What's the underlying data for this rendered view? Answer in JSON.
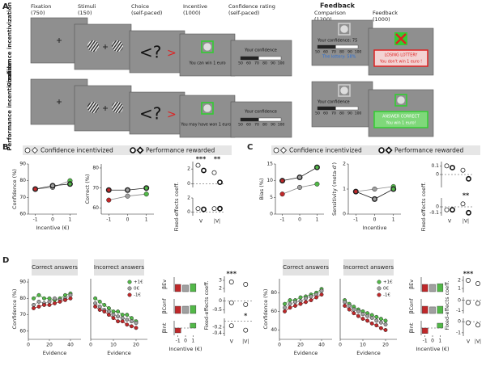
{
  "task": {
    "label": "A",
    "section": "Feedback",
    "rows": [
      "Confidence incentivization",
      "Performance incentivization"
    ],
    "steps": [
      {
        "name": "Fixation",
        "duration": "(750)"
      },
      {
        "name": "Stimuli",
        "duration": "(150)"
      },
      {
        "name": "Choice",
        "duration": "(self-paced)"
      },
      {
        "name": "Incentive",
        "duration": "(1000)"
      },
      {
        "name": "Confidence rating",
        "duration": "(self-paced)"
      },
      {
        "name": "Comparison",
        "duration": "(1200)"
      },
      {
        "name": "Feedback",
        "duration": "(1000)"
      }
    ],
    "choice_symbols": [
      "<?",
      ">"
    ],
    "scale": [
      50,
      60,
      70,
      80,
      90,
      100
    ],
    "screens": [
      {
        "incentive": "You can win 1 euro",
        "confidence": "Your confidence",
        "comparison": [
          "Your confidence: 75",
          "The lottery: 58%"
        ],
        "feedback": [
          "LOSING LOTTERY",
          "You don't win 1 euro !"
        ]
      },
      {
        "incentive": "You may have won 1 euro !",
        "confidence": "Your confidence",
        "comparison": [
          "Your confidence"
        ],
        "feedback": [
          "ANSWER CORRECT",
          "You win 1 euro!"
        ]
      }
    ]
  },
  "panels": [
    {
      "label": "B",
      "charts": [
        {
          "type": "line",
          "ylabel": "Confidence (%)",
          "xlabel": "Incentive (€)",
          "xlim": [
            -1.4,
            1.4
          ],
          "ylim": [
            60,
            90
          ],
          "xticks": [
            -1,
            0,
            1
          ],
          "yticks": [
            60,
            70,
            80,
            90
          ],
          "x": [
            -1,
            0,
            1
          ],
          "point_colors": [
            "#c0282a",
            "#a0a0a0",
            "#52b848"
          ],
          "series": [
            {
              "name": "Confidence incentivized",
              "color": "#888",
              "outline": "thin",
              "values": [
                75,
                76,
                80
              ]
            },
            {
              "name": "Performance rewarded",
              "color": "#222",
              "outline": "thick",
              "values": [
                75,
                77,
                78
              ]
            }
          ]
        },
        {
          "type": "line",
          "ylabel": "Correct (%)",
          "xlim": [
            -1.4,
            1.4
          ],
          "ylim": [
            57,
            82
          ],
          "xticks": [
            -1,
            0,
            1
          ],
          "yticks": [
            60,
            70,
            80
          ],
          "x": [
            -1,
            0,
            1
          ],
          "point_colors": [
            "#c0282a",
            "#a0a0a0",
            "#52b848"
          ],
          "series": [
            {
              "color": "#888",
              "outline": "thin",
              "values": [
                64,
                66,
                67
              ]
            },
            {
              "color": "#222",
              "outline": "thick",
              "values": [
                69,
                69,
                70
              ]
            }
          ]
        },
        {
          "type": "coef",
          "ylim": [
            -0.5,
            3
          ],
          "yticks": [
            0,
            2
          ],
          "annotations": [
            "***",
            "**"
          ],
          "series": [
            {
              "outline": "thin",
              "values": [
                2.5,
                1.5
              ]
            },
            {
              "outline": "thick",
              "values": [
                1.8,
                0.2
              ]
            }
          ]
        },
        {
          "type": "coef",
          "ylabel": "Fixed-effects coeff.",
          "ylim": [
            -0.5,
            2
          ],
          "yticks": [
            0,
            2
          ],
          "categories": [
            "V",
            "|V|"
          ],
          "series": [
            {
              "outline": "thin",
              "values": [
                0.5,
                0.5
              ]
            },
            {
              "outline": "thick",
              "values": [
                0.4,
                0.5
              ]
            }
          ]
        }
      ]
    },
    {
      "label": "C",
      "charts": [
        {
          "type": "line",
          "ylabel": "Bias (%)",
          "xlim": [
            -1.4,
            1.4
          ],
          "ylim": [
            0,
            15
          ],
          "xticks": [
            -1,
            0,
            1
          ],
          "yticks": [
            0,
            5,
            10,
            15
          ],
          "x": [
            -1,
            0,
            1
          ],
          "point_colors": [
            "#c0282a",
            "#a0a0a0",
            "#52b848"
          ],
          "series": [
            {
              "name": "Confidence incentivized",
              "color": "#888",
              "outline": "thin",
              "values": [
                6,
                8,
                9
              ]
            },
            {
              "name": "Performance rewarded",
              "color": "#222",
              "outline": "thick",
              "values": [
                10,
                11,
                14
              ]
            }
          ]
        },
        {
          "type": "line",
          "ylabel": "Sensitivity (meta-d')",
          "xlabel": "Incentive",
          "xlim": [
            -1.4,
            1.4
          ],
          "ylim": [
            0,
            2
          ],
          "xticks": [
            -1,
            0,
            1
          ],
          "yticks": [
            0,
            1,
            2
          ],
          "x": [
            -1,
            0,
            1
          ],
          "point_colors": [
            "#c0282a",
            "#a0a0a0",
            "#52b848"
          ],
          "series": [
            {
              "color": "#888",
              "outline": "thin",
              "values": [
                0.9,
                1.0,
                1.1
              ]
            },
            {
              "color": "#222",
              "outline": "thick",
              "values": [
                0.9,
                0.6,
                1.0
              ]
            }
          ]
        },
        {
          "type": "coef",
          "ylim": [
            -0.15,
            0.15
          ],
          "yticks": [
            0,
            0.1
          ],
          "series": [
            {
              "outline": "thin",
              "values": [
                0.1,
                0.05
              ]
            },
            {
              "outline": "thick",
              "values": [
                0.08,
                -0.05
              ]
            }
          ]
        },
        {
          "type": "coef",
          "ylabel": "Fixed-effects coeff.",
          "ylim": [
            -0.15,
            0.15
          ],
          "yticks": [
            -0.1,
            0
          ],
          "categories": [
            "V",
            "|V|"
          ],
          "annotations": [
            "",
            "**"
          ],
          "series": [
            {
              "outline": "thin",
              "values": [
                -0.05,
                0.05
              ]
            },
            {
              "outline": "thick",
              "values": [
                -0.05,
                -0.1
              ]
            }
          ]
        }
      ]
    },
    {
      "label": "D",
      "charts": [
        {
          "type": "line",
          "title": "Correct answers",
          "ylabel": "Confidence (%)",
          "xlabel": "Evidence",
          "xlim": [
            0,
            50
          ],
          "ylim": [
            55,
            92
          ],
          "xticks": [
            0,
            20,
            40
          ],
          "yticks": [
            60,
            70,
            80,
            90
          ],
          "x": [
            5,
            10,
            15,
            20,
            25,
            30,
            35,
            40
          ],
          "series": [
            {
              "color": "#52b848",
              "outline": "thin",
              "values": [
                80,
                82,
                80,
                80,
                79,
                80,
                82,
                83
              ]
            },
            {
              "color": "#a0a0a0",
              "outline": "thin",
              "values": [
                76,
                78,
                77,
                78,
                80,
                79,
                80,
                82
              ]
            },
            {
              "color": "#c0282a",
              "outline": "thin",
              "values": [
                74,
                75,
                76,
                76,
                77,
                78,
                79,
                80
              ]
            }
          ]
        },
        {
          "type": "line",
          "title": "Incorrect answers",
          "xlabel": "Evidence",
          "legend": true,
          "xlim": [
            0,
            25
          ],
          "ylim": [
            55,
            92
          ],
          "xticks": [
            0,
            10,
            20
          ],
          "x": [
            2,
            4,
            6,
            8,
            10,
            12,
            14,
            16,
            18,
            20
          ],
          "series": [
            {
              "name": "+1€",
              "color": "#52b848",
              "outline": "thin",
              "values": [
                80,
                78,
                76,
                74,
                72,
                72,
                70,
                70,
                68,
                66
              ]
            },
            {
              "name": "0€",
              "color": "#a0a0a0",
              "outline": "thin",
              "values": [
                77,
                75,
                73,
                72,
                70,
                69,
                68,
                67,
                66,
                65
              ]
            },
            {
              "name": "-1€",
              "color": "#c0282a",
              "outline": "thin",
              "values": [
                75,
                73,
                72,
                70,
                68,
                66,
                66,
                64,
                63,
                62
              ]
            }
          ]
        },
        {
          "type": "bar",
          "ylabel": "βEv",
          "ylim": [
            0,
            1
          ],
          "point_colors": [
            "#c0282a",
            "#a0a0a0",
            "#52b848"
          ],
          "values": [
            0.5,
            0.45,
            0.55
          ]
        },
        {
          "type": "bar",
          "ylabel": "βConf",
          "ylim": [
            0,
            1
          ],
          "point_colors": [
            "#c0282a",
            "#a0a0a0",
            "#52b848"
          ],
          "values": [
            0.5,
            0.5,
            0.55
          ]
        },
        {
          "type": "bar",
          "ylabel": "βInt",
          "xlabel": "Incentive (€)",
          "ylim": [
            -0.6,
            0.6
          ],
          "xticks": [
            -1,
            0,
            1
          ],
          "point_colors": [
            "#c0282a",
            "#a0a0a0",
            "#52b848"
          ],
          "values": [
            -0.4,
            0,
            0.4
          ]
        },
        {
          "type": "coef",
          "ylim": [
            1.5,
            3.5
          ],
          "yticks": [
            2,
            3
          ],
          "annotations": [
            "***"
          ],
          "series": [
            {
              "outline": "thin",
              "values": [
                2.8,
                2.5
              ]
            }
          ]
        },
        {
          "type": "coef",
          "ylabel": "Fixed-effects coeff.",
          "ylim": [
            -0.7,
            0.2
          ],
          "yticks": [
            -0.5,
            0
          ],
          "series": [
            {
              "outline": "thin",
              "values": [
                -0.1,
                -0.2
              ]
            }
          ]
        },
        {
          "type": "coef",
          "ylim": [
            -0.5,
            0.1
          ],
          "yticks": [
            -0.4,
            -0.2
          ],
          "categories": [
            "V",
            "|V|"
          ],
          "annotations": [
            "",
            "*"
          ],
          "series": [
            {
              "outline": "thin",
              "values": [
                -0.15,
                -0.3
              ]
            }
          ]
        },
        {
          "type": "line",
          "title": "Correct answers",
          "ylabel": "Confidence (%)",
          "xlabel": "Evidence",
          "xlim": [
            0,
            50
          ],
          "ylim": [
            30,
            95
          ],
          "xticks": [
            0,
            20,
            40
          ],
          "yticks": [
            40,
            60,
            80
          ],
          "x": [
            5,
            10,
            15,
            20,
            25,
            30,
            35,
            40
          ],
          "series": [
            {
              "color": "#52b848",
              "outline": "thin",
              "values": [
                68,
                72,
                72,
                75,
                76,
                78,
                80,
                84
              ]
            },
            {
              "color": "#a0a0a0",
              "outline": "thin",
              "values": [
                64,
                68,
                70,
                71,
                74,
                76,
                78,
                82
              ]
            },
            {
              "color": "#c0282a",
              "outline": "thin",
              "values": [
                60,
                64,
                66,
                68,
                70,
                72,
                75,
                78
              ]
            }
          ]
        },
        {
          "type": "line",
          "title": "Incorrect answers",
          "xlabel": "Evidence",
          "legend": true,
          "xlim": [
            0,
            25
          ],
          "ylim": [
            30,
            95
          ],
          "xticks": [
            0,
            10,
            20
          ],
          "x": [
            2,
            4,
            6,
            8,
            10,
            12,
            14,
            16,
            18,
            20
          ],
          "series": [
            {
              "name": "+1€",
              "color": "#52b848",
              "outline": "thin",
              "values": [
                72,
                68,
                65,
                62,
                60,
                58,
                56,
                54,
                52,
                50
              ]
            },
            {
              "name": "0€",
              "color": "#a0a0a0",
              "outline": "thin",
              "values": [
                70,
                66,
                62,
                60,
                57,
                55,
                53,
                50,
                48,
                46
              ]
            },
            {
              "name": "-1€",
              "color": "#c0282a",
              "outline": "thin",
              "values": [
                66,
                62,
                58,
                55,
                52,
                50,
                47,
                45,
                42,
                40
              ]
            }
          ]
        },
        {
          "type": "bar",
          "ylabel": "βEv",
          "ylim": [
            0,
            1
          ],
          "point_colors": [
            "#c0282a",
            "#a0a0a0",
            "#52b848"
          ],
          "values": [
            0.5,
            0.5,
            0.55
          ]
        },
        {
          "type": "bar",
          "ylabel": "βConf",
          "ylim": [
            0,
            1
          ],
          "point_colors": [
            "#c0282a",
            "#a0a0a0",
            "#52b848"
          ],
          "values": [
            0.5,
            0.45,
            0.5
          ]
        },
        {
          "type": "bar",
          "ylabel": "βInt",
          "xlabel": "Incentive (€)",
          "ylim": [
            -0.6,
            0.6
          ],
          "xticks": [
            -1,
            0,
            1
          ],
          "point_colors": [
            "#c0282a",
            "#a0a0a0",
            "#52b848"
          ],
          "values": [
            -0.45,
            0,
            0.4
          ]
        },
        {
          "type": "coef",
          "ylim": [
            0.5,
            2.5
          ],
          "yticks": [
            1,
            2
          ],
          "annotations": [
            "***"
          ],
          "series": [
            {
              "outline": "thin",
              "values": [
                2,
                1.6
              ]
            }
          ]
        },
        {
          "type": "coef",
          "ylabel": "Fixed-effects coeff.",
          "ylim": [
            -1.3,
            0.3
          ],
          "yticks": [
            -1,
            0
          ],
          "series": [
            {
              "outline": "thin",
              "values": [
                -0.2,
                -0.3
              ]
            }
          ]
        },
        {
          "type": "coef",
          "ylim": [
            -1.3,
            0.3
          ],
          "yticks": [
            -1,
            0
          ],
          "categories": [
            "V",
            "|V|"
          ],
          "series": [
            {
              "outline": "thin",
              "values": [
                -0.1,
                -0.3
              ]
            }
          ]
        }
      ]
    }
  ]
}
